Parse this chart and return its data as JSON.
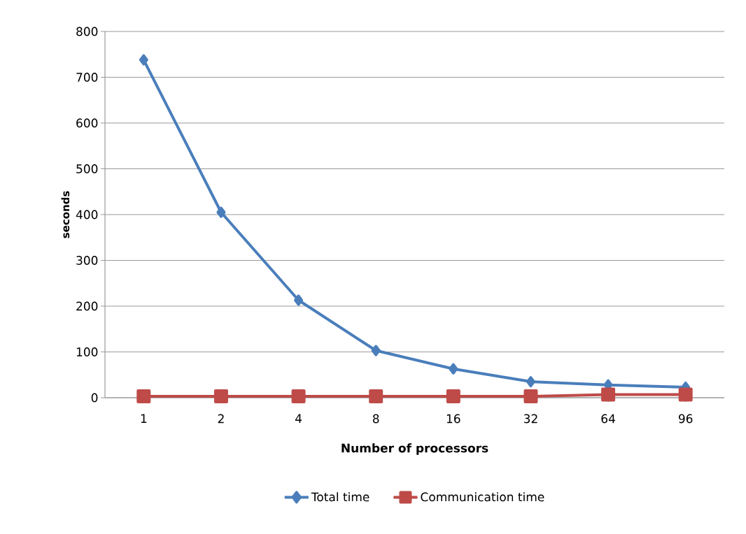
{
  "chart_data": {
    "type": "line",
    "xlabel": "Number of processors",
    "ylabel": "seconds",
    "categories": [
      "1",
      "2",
      "4",
      "8",
      "16",
      "32",
      "64",
      "96"
    ],
    "series": [
      {
        "name": "Total time",
        "color": "#4a7ebb",
        "marker": "diamond",
        "values": [
          738,
          405,
          213,
          103,
          63,
          35,
          28,
          23
        ]
      },
      {
        "name": "Communication time",
        "color": "#be4b48",
        "marker": "square",
        "values": [
          3,
          3,
          3,
          3,
          3,
          3,
          7,
          7
        ]
      }
    ],
    "ylim": [
      0,
      800
    ],
    "yticks": [
      0,
      100,
      200,
      300,
      400,
      500,
      600,
      700,
      800
    ],
    "grid": "y",
    "legend": "bottom",
    "line_style": "solid"
  }
}
